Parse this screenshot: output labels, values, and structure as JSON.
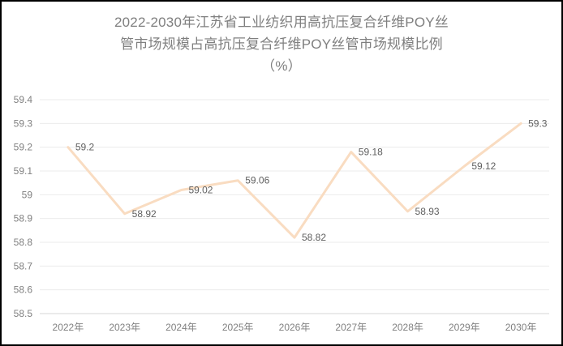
{
  "title": {
    "lines": [
      "2022-2030年江苏省工业纺织用高抗压复合纤维POY丝",
      "管市场规模占高抗压复合纤维POY丝管市场规模比例",
      "（%）"
    ]
  },
  "chart_data": {
    "type": "line",
    "title": "2022-2030年江苏省工业纺织用高抗压复合纤维POY丝管市场规模占高抗压复合纤维POY丝管市场规模比例（%）",
    "categories": [
      "2022年",
      "2023年",
      "2024年",
      "2025年",
      "2026年",
      "2027年",
      "2028年",
      "2029年",
      "2030年"
    ],
    "values": [
      59.2,
      58.92,
      59.02,
      59.06,
      58.82,
      59.18,
      58.93,
      59.12,
      59.3
    ],
    "data_labels": [
      "59.2",
      "58.92",
      "59.02",
      "59.06",
      "58.82",
      "59.18",
      "58.93",
      "59.12",
      "59.3"
    ],
    "ylim": [
      58.5,
      59.4
    ],
    "ytick_step": 0.1,
    "yticks": [
      "58.5",
      "58.6",
      "58.7",
      "58.8",
      "58.9",
      "59",
      "59.1",
      "59.2",
      "59.3",
      "59.4"
    ],
    "xlabel": "",
    "ylabel": "",
    "grid": true,
    "legend": "none",
    "colors": {
      "line": "#f9dcc1",
      "gridline": "#ebebeb",
      "axis_line": "#d6d6d6",
      "axis_label": "#808080",
      "data_label": "#5f5f5f",
      "title": "#7f7f7f",
      "border": "#000000",
      "background": "#ffffff"
    }
  }
}
